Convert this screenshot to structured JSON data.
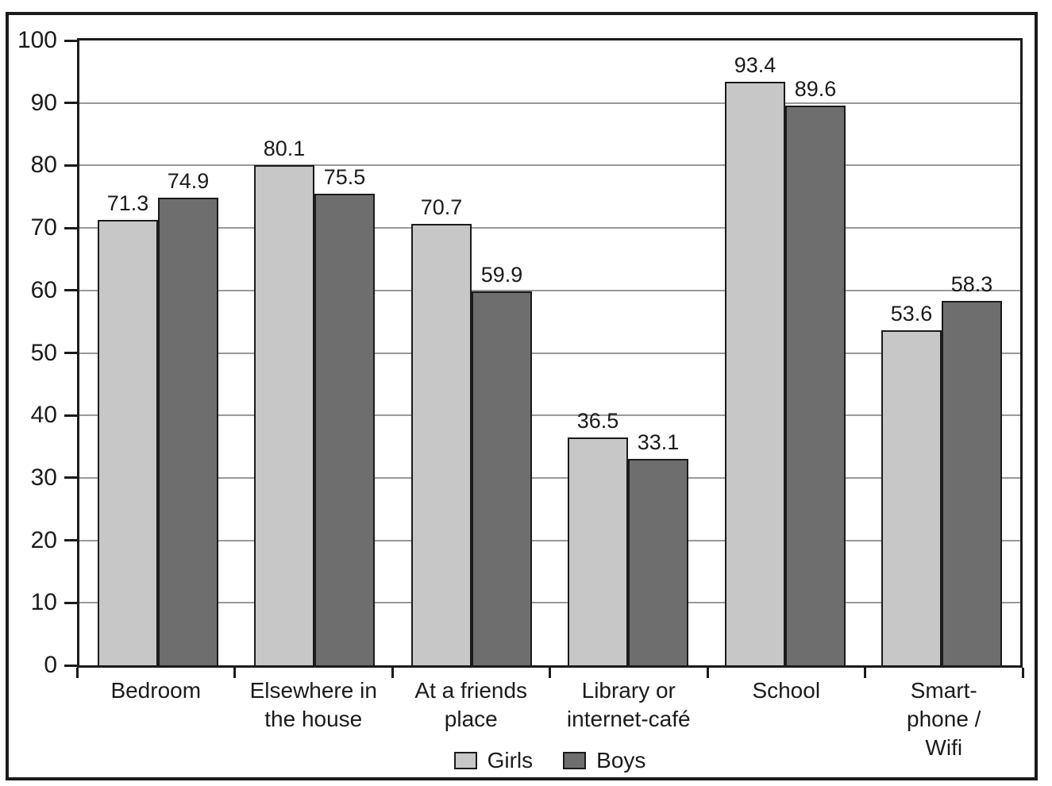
{
  "chart_data": {
    "type": "bar",
    "title": "",
    "categories": [
      "Bedroom",
      "Elsewhere in\nthe house",
      "At a friends\nplace",
      "Library or\ninternet-café",
      "School",
      "Smart-phone /\nWifi"
    ],
    "series": [
      {
        "name": "Girls",
        "color": "#c7c7c7",
        "values": [
          71.3,
          80.1,
          70.7,
          36.5,
          93.4,
          53.6
        ]
      },
      {
        "name": "Boys",
        "color": "#6e6e6e",
        "values": [
          74.9,
          75.5,
          59.9,
          33.1,
          89.6,
          58.3
        ]
      }
    ],
    "value_labels": [
      "71.3",
      "80.1",
      "70.7",
      "36.5",
      "93.4",
      "53.6",
      "74.9",
      "75.5",
      "59.9",
      "33.1",
      "89.6",
      "58.3"
    ],
    "ylim": [
      0,
      100
    ],
    "yticks": [
      0,
      10,
      20,
      30,
      40,
      50,
      60,
      70,
      80,
      90,
      100
    ],
    "grid": "horizontal",
    "legend_position": "bottom-center"
  },
  "colors": {
    "background": "#ffffff",
    "frame": "#1b1b1b",
    "axis": "#1b1b1b",
    "gridline": "#999999",
    "text": "#1b1b1b",
    "girls_bar": "#c7c7c7",
    "boys_bar": "#6e6e6e"
  }
}
